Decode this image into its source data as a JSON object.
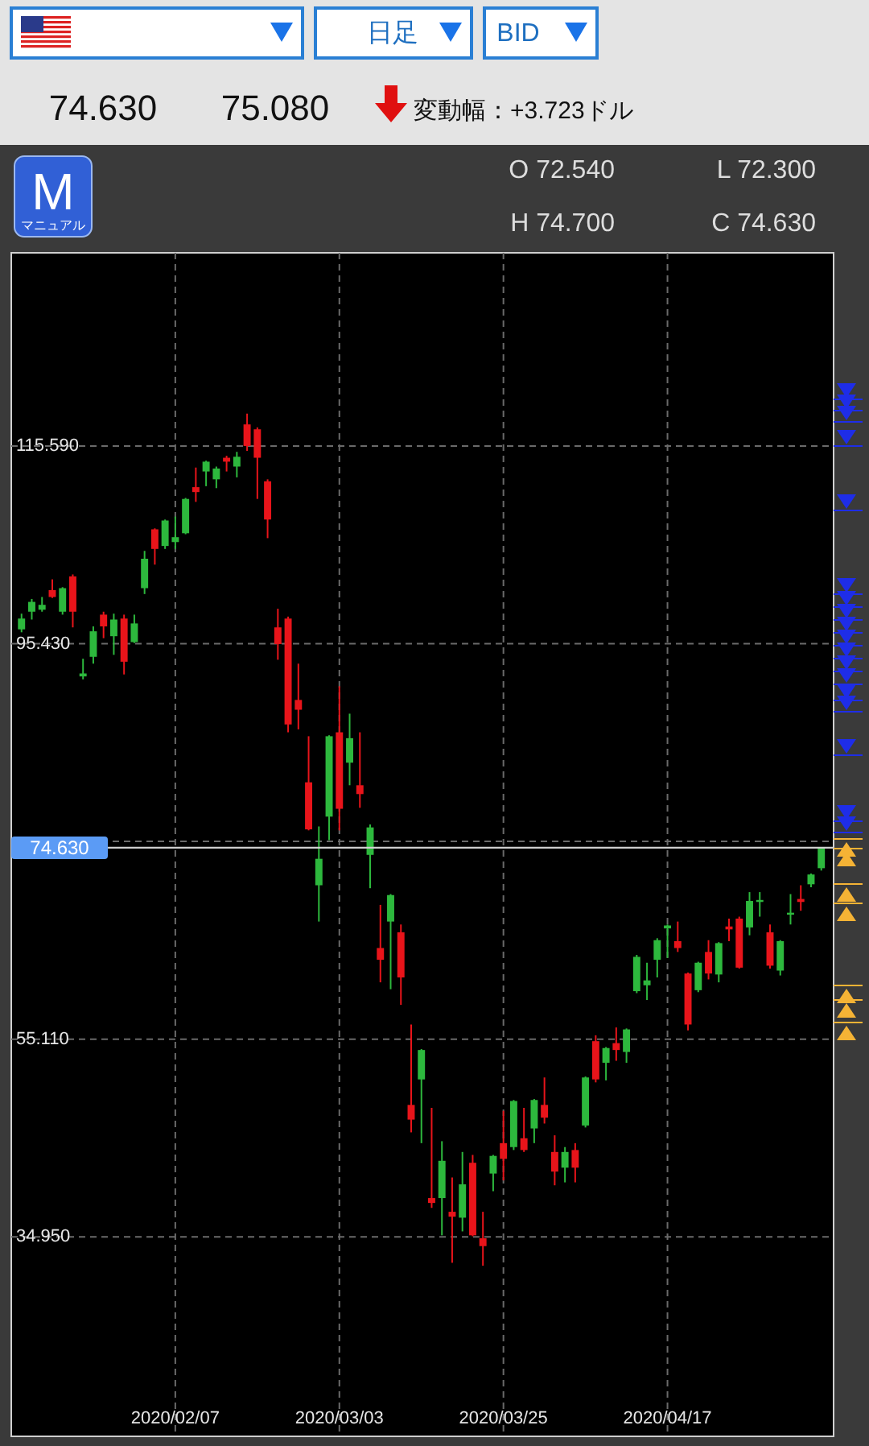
{
  "chart_data": {
    "type": "candlestick",
    "categories": [
      null,
      null,
      null,
      null,
      null,
      null,
      null,
      null,
      null,
      null,
      null,
      null,
      null,
      null,
      null,
      "2020/02/07",
      null,
      null,
      null,
      null,
      null,
      null,
      null,
      null,
      null,
      null,
      null,
      null,
      null,
      null,
      null,
      "2020/03/03",
      null,
      null,
      null,
      null,
      null,
      null,
      null,
      null,
      null,
      null,
      null,
      null,
      null,
      null,
      null,
      "2020/03/25",
      null,
      null,
      null,
      null,
      null,
      null,
      null,
      null,
      null,
      null,
      null,
      null,
      null,
      null,
      null,
      "2020/04/17",
      null,
      null,
      null,
      null,
      null,
      null,
      null,
      null,
      null,
      null,
      null,
      null,
      null,
      null,
      null
    ],
    "ohlc": [
      [
        96.9,
        98.5,
        96.6,
        98.0
      ],
      [
        98.7,
        100.0,
        97.9,
        99.7
      ],
      [
        98.9,
        100.2,
        98.7,
        99.4
      ],
      [
        100.9,
        102.0,
        100.1,
        100.2
      ],
      [
        98.7,
        101.2,
        98.4,
        101.1
      ],
      [
        102.3,
        102.5,
        97.1,
        98.7
      ],
      [
        92.1,
        93.9,
        91.8,
        92.4
      ],
      [
        94.1,
        97.2,
        93.4,
        96.7
      ],
      [
        98.4,
        98.7,
        96.0,
        97.2
      ],
      [
        96.2,
        98.5,
        94.3,
        97.9
      ],
      [
        98.0,
        98.4,
        92.3,
        93.6
      ],
      [
        95.6,
        98.4,
        95.5,
        97.5
      ],
      [
        101.1,
        104.9,
        100.5,
        104.1
      ],
      [
        107.1,
        107.2,
        103.5,
        105.1
      ],
      [
        105.4,
        108.1,
        105.1,
        108.0
      ],
      [
        105.8,
        108.4,
        105.1,
        106.3
      ],
      [
        106.7,
        110.3,
        106.6,
        110.2
      ],
      [
        111.4,
        113.4,
        109.9,
        110.9
      ],
      [
        113.0,
        114.1,
        111.5,
        114.0
      ],
      [
        112.2,
        113.5,
        111.3,
        113.3
      ],
      [
        114.4,
        114.6,
        113.0,
        114.0
      ],
      [
        113.5,
        115.0,
        112.4,
        114.5
      ],
      [
        117.8,
        118.9,
        115.1,
        115.6
      ],
      [
        117.3,
        117.5,
        110.2,
        114.4
      ],
      [
        112.0,
        112.2,
        106.2,
        108.1
      ],
      [
        97.1,
        99.0,
        93.8,
        95.4
      ],
      [
        98.0,
        98.2,
        86.4,
        87.2
      ],
      [
        89.7,
        93.4,
        86.7,
        88.7
      ],
      [
        81.3,
        86.0,
        76.4,
        76.5
      ],
      [
        70.8,
        76.8,
        67.1,
        73.5
      ],
      [
        77.8,
        86.1,
        75.4,
        86.0
      ],
      [
        86.4,
        91.1,
        76.4,
        78.6
      ],
      [
        83.3,
        88.3,
        81.0,
        85.8
      ],
      [
        81.0,
        86.4,
        78.7,
        80.1
      ],
      [
        73.9,
        77.0,
        70.5,
        76.7
      ],
      [
        64.4,
        68.8,
        60.9,
        63.2
      ],
      [
        67.1,
        69.9,
        60.2,
        69.8
      ],
      [
        66.0,
        66.8,
        58.6,
        61.4
      ],
      [
        48.4,
        56.6,
        45.6,
        46.9
      ],
      [
        51.0,
        54.1,
        44.5,
        54.0
      ],
      [
        38.9,
        48.1,
        37.9,
        38.4
      ],
      [
        38.9,
        44.7,
        35.1,
        42.7
      ],
      [
        37.5,
        41.0,
        32.3,
        37.0
      ],
      [
        36.9,
        43.6,
        35.5,
        40.3
      ],
      [
        42.5,
        43.3,
        35.0,
        35.1
      ],
      [
        34.8,
        37.5,
        32.0,
        34.0
      ],
      [
        41.4,
        43.3,
        39.6,
        43.2
      ],
      [
        44.5,
        47.8,
        40.7,
        42.9
      ],
      [
        44.1,
        48.9,
        43.8,
        48.8
      ],
      [
        45.0,
        48.1,
        43.6,
        43.8
      ],
      [
        46.0,
        49.0,
        44.5,
        48.9
      ],
      [
        48.4,
        51.2,
        46.5,
        47.1
      ],
      [
        43.6,
        45.3,
        40.2,
        41.6
      ],
      [
        42.0,
        44.1,
        40.5,
        43.6
      ],
      [
        43.8,
        44.5,
        40.5,
        42.0
      ],
      [
        46.3,
        51.3,
        46.1,
        51.2
      ],
      [
        54.9,
        55.5,
        50.7,
        51.0
      ],
      [
        52.7,
        54.3,
        50.9,
        54.2
      ],
      [
        54.7,
        56.3,
        52.9,
        54.0
      ],
      [
        53.8,
        56.2,
        52.7,
        56.1
      ],
      [
        60.0,
        63.7,
        59.8,
        63.5
      ],
      [
        60.6,
        62.9,
        59.1,
        61.1
      ],
      [
        63.2,
        65.4,
        61.4,
        65.2
      ],
      [
        66.4,
        66.8,
        63.4,
        66.7
      ],
      [
        65.1,
        67.1,
        64.0,
        64.4
      ],
      [
        61.8,
        61.9,
        56.0,
        56.6
      ],
      [
        60.1,
        63.0,
        59.9,
        62.9
      ],
      [
        64.0,
        65.2,
        61.2,
        61.8
      ],
      [
        61.7,
        65.0,
        60.9,
        64.9
      ],
      [
        66.6,
        67.4,
        65.1,
        66.3
      ],
      [
        67.4,
        67.6,
        62.3,
        62.4
      ],
      [
        66.5,
        70.1,
        65.7,
        69.2
      ],
      [
        69.1,
        70.1,
        67.6,
        69.3
      ],
      [
        66.0,
        66.8,
        62.3,
        62.6
      ],
      [
        62.1,
        65.2,
        61.6,
        65.1
      ],
      [
        67.8,
        69.9,
        66.8,
        68.0
      ],
      [
        69.4,
        70.8,
        68.2,
        69.1
      ],
      [
        70.9,
        72.0,
        70.6,
        71.9
      ],
      [
        72.54,
        74.7,
        72.3,
        74.63
      ]
    ],
    "colors": [
      "#2db83d",
      "#2db83d",
      "#2db83d",
      "#e8141a",
      "#2db83d",
      "#e8141a",
      "#2db83d",
      "#2db83d",
      "#e8141a",
      "#2db83d",
      "#e8141a",
      "#2db83d",
      "#2db83d",
      "#e8141a",
      "#2db83d",
      "#2db83d",
      "#2db83d",
      "#e8141a",
      "#2db83d",
      "#2db83d",
      "#e8141a",
      "#2db83d",
      "#e8141a",
      "#e8141a",
      "#e8141a",
      "#e8141a",
      "#e8141a",
      "#e8141a",
      "#e8141a",
      "#2db83d",
      "#2db83d",
      "#e8141a",
      "#2db83d",
      "#e8141a",
      "#2db83d",
      "#e8141a",
      "#2db83d",
      "#e8141a",
      "#e8141a",
      "#2db83d",
      "#e8141a",
      "#2db83d",
      "#e8141a",
      "#2db83d",
      "#e8141a",
      "#e8141a",
      "#2db83d",
      "#e8141a",
      "#2db83d",
      "#e8141a",
      "#2db83d",
      "#e8141a",
      "#e8141a",
      "#2db83d",
      "#e8141a",
      "#2db83d",
      "#e8141a",
      "#2db83d",
      "#e8141a",
      "#2db83d",
      "#2db83d",
      "#2db83d",
      "#2db83d",
      "#2db83d",
      "#e8141a",
      "#e8141a",
      "#2db83d",
      "#e8141a",
      "#2db83d",
      "#e8141a",
      "#e8141a",
      "#2db83d",
      "#2db83d",
      "#e8141a",
      "#2db83d",
      "#2db83d",
      "#e8141a",
      "#2db83d",
      "#2db83d"
    ],
    "ylim": [
      14.6,
      135.3
    ],
    "yticks": [
      {
        "value": 34.95,
        "label": "34.950"
      },
      {
        "value": 55.11,
        "label": "55.110"
      },
      {
        "value": 75.27,
        "label": null
      },
      {
        "value": 95.43,
        "label": "95.430"
      },
      {
        "value": 115.59,
        "label": "115.590"
      }
    ],
    "grid": true,
    "ref_lines": [
      {
        "axis": "y",
        "value": 74.63,
        "label": "74.630"
      }
    ],
    "annotations": [
      "日足",
      "BID",
      "74.630",
      "75.080",
      "変動幅：+3.723ドル",
      "M",
      "マニュアル",
      "O 72.540",
      "L 72.300",
      "H 74.700",
      "C 74.630"
    ]
  }
}
